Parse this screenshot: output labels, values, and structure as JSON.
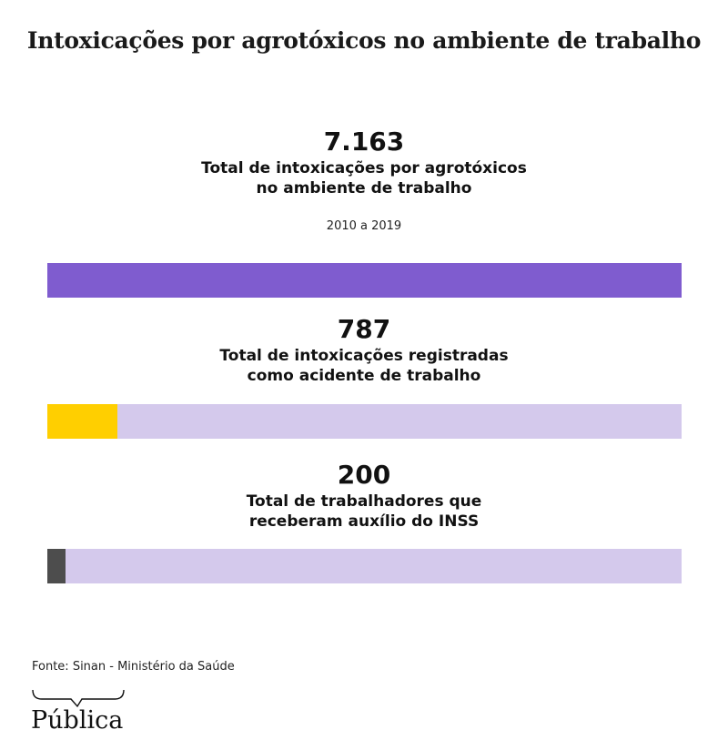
{
  "title": "Intoxicações por agrotóxicos no ambiente de trabalho",
  "period": "2010 a 2019",
  "source": "Fonte: Sinan - Ministério da Saúde",
  "logo_text": "Pública",
  "colors": {
    "track": "#d4c9ec",
    "purple": "#7f5ccf",
    "yellow": "#ffcf00",
    "gray": "#4d4d4d"
  },
  "chart_data": {
    "type": "bar",
    "title": "Intoxicações por agrotóxicos no ambiente de trabalho",
    "subtitle": "2010 a 2019",
    "orientation": "horizontal",
    "reference_total": 7163,
    "series": [
      {
        "name": "Total de intoxicações por agrotóxicos no ambiente de trabalho",
        "value": 7163,
        "value_label": "7.163",
        "label_line1": "Total de intoxicações por agrotóxicos",
        "label_line2": "no ambiente de trabalho",
        "color": "#7f5ccf"
      },
      {
        "name": "Total de intoxicações registradas como acidente de trabalho",
        "value": 787,
        "value_label": "787",
        "label_line1": "Total de intoxicações registradas",
        "label_line2": "como acidente de trabalho",
        "color": "#ffcf00"
      },
      {
        "name": "Total de trabalhadores que receberam auxílio do INSS",
        "value": 200,
        "value_label": "200",
        "label_line1": "Total de trabalhadores que",
        "label_line2": "receberam auxílio do INSS",
        "color": "#4d4d4d"
      }
    ]
  }
}
